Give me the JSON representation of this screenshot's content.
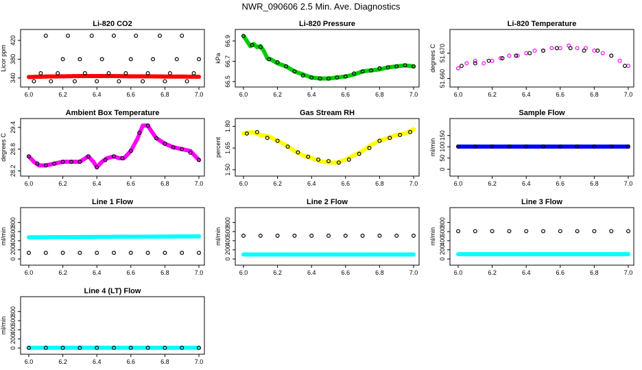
{
  "figure_title": "NWR_090606  2.5 Min. Ave. Diagnostics",
  "chart_data": [
    {
      "id": "co2",
      "type": "scatter",
      "title": "Li-820 CO2",
      "ylabel": "Licor ppm",
      "xlim": [
        6.0,
        7.0
      ],
      "ylim": [
        328,
        436
      ],
      "xticks": [
        6.0,
        6.2,
        6.4,
        6.6,
        6.8,
        7.0
      ],
      "xtick_labels": [
        "6.0",
        "6.2",
        "6.4",
        "6.6",
        "6.8",
        "7.0"
      ],
      "yticks": [
        340,
        380,
        420
      ],
      "ytick_labels": [
        "340",
        "380",
        "420"
      ],
      "series": [
        {
          "name": "red",
          "color": "#ff0000",
          "marker": "dot",
          "x": [
            6.0,
            6.1,
            6.2,
            6.3,
            6.4,
            6.5,
            6.6,
            6.7,
            6.8,
            6.9,
            7.0
          ],
          "y": [
            342,
            343,
            343.5,
            344,
            344,
            344,
            343.5,
            343.5,
            343,
            343,
            342.5
          ]
        },
        {
          "name": "black",
          "color": "#000000",
          "marker": "circle",
          "x": [
            6.03,
            6.07,
            6.1,
            6.13,
            6.17,
            6.2,
            6.23,
            6.27,
            6.3,
            6.33,
            6.37,
            6.4,
            6.43,
            6.47,
            6.5,
            6.53,
            6.57,
            6.6,
            6.63,
            6.67,
            6.7,
            6.73,
            6.77,
            6.8,
            6.83,
            6.87,
            6.9,
            6.93,
            6.97,
            7.0
          ],
          "y": [
            333,
            350,
            430,
            333,
            350,
            380,
            430,
            333,
            380,
            350,
            430,
            333,
            380,
            350,
            430,
            333,
            350,
            380,
            430,
            333,
            350,
            380,
            430,
            333,
            350,
            380,
            430,
            333,
            350,
            380
          ]
        }
      ]
    },
    {
      "id": "pressure",
      "type": "scatter",
      "title": "Li-820 Pressure",
      "ylabel": "kPa",
      "xlim": [
        6.0,
        7.0
      ],
      "ylim": [
        66.48,
        66.98
      ],
      "xticks": [
        6.0,
        6.2,
        6.4,
        6.6,
        6.8,
        7.0
      ],
      "xtick_labels": [
        "6.0",
        "6.2",
        "6.4",
        "6.6",
        "6.8",
        "7.0"
      ],
      "yticks": [
        66.5,
        66.7,
        66.9
      ],
      "ytick_labels": [
        "66.5",
        "66.7",
        "66.9"
      ],
      "series": [
        {
          "name": "green",
          "color": "#00cc00",
          "marker": "dot",
          "x": [
            6.0,
            6.02,
            6.04,
            6.06,
            6.08,
            6.1,
            6.12,
            6.14,
            6.16,
            6.2,
            6.25,
            6.3,
            6.35,
            6.4,
            6.45,
            6.5,
            6.55,
            6.6,
            6.65,
            6.7,
            6.75,
            6.8,
            6.85,
            6.9,
            6.95,
            7.0
          ],
          "y": [
            66.95,
            66.9,
            66.85,
            66.87,
            66.84,
            66.85,
            66.8,
            66.73,
            66.72,
            66.68,
            66.65,
            66.6,
            66.57,
            66.54,
            66.53,
            66.53,
            66.54,
            66.55,
            66.57,
            66.6,
            66.61,
            66.62,
            66.64,
            66.65,
            66.66,
            66.65
          ]
        },
        {
          "name": "black",
          "color": "#000000",
          "marker": "circle",
          "x": [
            6.0,
            6.05,
            6.1,
            6.15,
            6.2,
            6.25,
            6.3,
            6.35,
            6.4,
            6.45,
            6.5,
            6.55,
            6.6,
            6.65,
            6.7,
            6.75,
            6.8,
            6.85,
            6.9,
            6.95,
            7.0
          ],
          "y": [
            66.95,
            66.86,
            66.84,
            66.72,
            66.69,
            66.65,
            66.6,
            66.56,
            66.54,
            66.53,
            66.53,
            66.54,
            66.55,
            66.58,
            66.6,
            66.61,
            66.63,
            66.64,
            66.65,
            66.66,
            66.65
          ]
        }
      ]
    },
    {
      "id": "licor_temp",
      "type": "scatter",
      "title": "Li-820 Temperature",
      "ylabel": "degrees C",
      "xlim": [
        6.0,
        7.0
      ],
      "ylim": [
        51.658,
        51.678
      ],
      "xticks": [
        6.0,
        6.2,
        6.4,
        6.6,
        6.8,
        7.0
      ],
      "xtick_labels": [
        "6.0",
        "6.2",
        "6.4",
        "6.6",
        "6.8",
        "7.0"
      ],
      "yticks": [
        51.66,
        51.67
      ],
      "ytick_labels": [
        "51.660",
        "51.670"
      ],
      "series": [
        {
          "name": "magenta",
          "color": "#ff00ff",
          "marker": "circle",
          "x": [
            6.0,
            6.05,
            6.1,
            6.15,
            6.2,
            6.25,
            6.3,
            6.35,
            6.4,
            6.45,
            6.5,
            6.55,
            6.6,
            6.65,
            6.7,
            6.75,
            6.8,
            6.85,
            6.9,
            6.95,
            7.0
          ],
          "y": [
            51.664,
            51.666,
            51.667,
            51.666,
            51.667,
            51.668,
            51.669,
            51.669,
            51.67,
            51.671,
            51.671,
            51.672,
            51.672,
            51.673,
            51.672,
            51.672,
            51.671,
            51.67,
            51.669,
            51.667,
            51.665
          ]
        },
        {
          "name": "black",
          "color": "#000000",
          "marker": "circle",
          "x": [
            6.02,
            6.1,
            6.18,
            6.26,
            6.34,
            6.42,
            6.5,
            6.58,
            6.66,
            6.74,
            6.82,
            6.9,
            6.98
          ],
          "y": [
            51.665,
            51.666,
            51.667,
            51.668,
            51.669,
            51.67,
            51.671,
            51.672,
            51.672,
            51.671,
            51.671,
            51.669,
            51.665
          ]
        }
      ]
    },
    {
      "id": "box_temp",
      "type": "scatter",
      "title": "Ambient Box Temperature",
      "ylabel": "degrees C",
      "xlim": [
        6.0,
        7.0
      ],
      "ylim": [
        28.15,
        29.55
      ],
      "xticks": [
        6.0,
        6.2,
        6.4,
        6.6,
        6.8,
        7.0
      ],
      "xtick_labels": [
        "6.0",
        "6.2",
        "6.4",
        "6.6",
        "6.8",
        "7.0"
      ],
      "yticks": [
        28.2,
        28.8,
        29.4
      ],
      "ytick_labels": [
        "28.2",
        "28.8",
        "29.4"
      ],
      "series": [
        {
          "name": "magenta",
          "color": "#ff00ff",
          "marker": "dot",
          "x": [
            6.0,
            6.03,
            6.06,
            6.1,
            6.15,
            6.2,
            6.25,
            6.3,
            6.35,
            6.38,
            6.4,
            6.43,
            6.46,
            6.5,
            6.53,
            6.56,
            6.6,
            6.64,
            6.67,
            6.7,
            6.72,
            6.75,
            6.8,
            6.85,
            6.9,
            6.95,
            7.0
          ],
          "y": [
            28.6,
            28.45,
            28.35,
            28.35,
            28.4,
            28.45,
            28.45,
            28.45,
            28.6,
            28.45,
            28.3,
            28.45,
            28.55,
            28.6,
            28.55,
            28.55,
            28.75,
            29.1,
            29.45,
            29.45,
            29.3,
            29.1,
            28.95,
            28.85,
            28.8,
            28.75,
            28.5
          ]
        },
        {
          "name": "black",
          "color": "#000000",
          "marker": "circle",
          "x": [
            6.0,
            6.05,
            6.1,
            6.15,
            6.2,
            6.25,
            6.3,
            6.35,
            6.4,
            6.45,
            6.5,
            6.55,
            6.6,
            6.65,
            6.7,
            6.75,
            6.8,
            6.85,
            6.9,
            6.95,
            7.0
          ],
          "y": [
            28.6,
            28.4,
            28.35,
            28.4,
            28.45,
            28.45,
            28.45,
            28.6,
            28.3,
            28.5,
            28.6,
            28.55,
            28.75,
            29.25,
            29.45,
            29.1,
            28.95,
            28.85,
            28.8,
            28.7,
            28.5
          ]
        }
      ]
    },
    {
      "id": "rh",
      "type": "scatter",
      "title": "Gas Stream RH",
      "ylabel": "percent",
      "xlim": [
        6.0,
        7.0
      ],
      "ylim": [
        1.48,
        1.83
      ],
      "xticks": [
        6.0,
        6.2,
        6.4,
        6.6,
        6.8,
        7.0
      ],
      "xtick_labels": [
        "6.0",
        "6.2",
        "6.4",
        "6.6",
        "6.8",
        "7.0"
      ],
      "yticks": [
        1.5,
        1.65,
        1.8
      ],
      "ytick_labels": [
        "1.50",
        "1.65",
        "1.80"
      ],
      "series": [
        {
          "name": "yellow",
          "color": "#ffff00",
          "marker": "dot",
          "x": [
            6.0,
            6.05,
            6.1,
            6.15,
            6.2,
            6.25,
            6.3,
            6.35,
            6.4,
            6.45,
            6.5,
            6.55,
            6.6,
            6.65,
            6.7,
            6.75,
            6.8,
            6.85,
            6.9,
            6.95,
            7.0
          ],
          "y": [
            1.75,
            1.76,
            1.74,
            1.73,
            1.7,
            1.67,
            1.63,
            1.6,
            1.58,
            1.56,
            1.55,
            1.55,
            1.57,
            1.6,
            1.63,
            1.67,
            1.7,
            1.72,
            1.74,
            1.75,
            1.78
          ]
        },
        {
          "name": "black",
          "color": "#000000",
          "marker": "circle",
          "x": [
            6.02,
            6.08,
            6.14,
            6.2,
            6.26,
            6.32,
            6.38,
            6.44,
            6.5,
            6.56,
            6.62,
            6.68,
            6.74,
            6.8,
            6.86,
            6.92,
            6.98
          ],
          "y": [
            1.75,
            1.76,
            1.72,
            1.7,
            1.66,
            1.62,
            1.59,
            1.57,
            1.56,
            1.55,
            1.57,
            1.61,
            1.65,
            1.7,
            1.72,
            1.74,
            1.76
          ]
        }
      ]
    },
    {
      "id": "sample_flow",
      "type": "scatter",
      "title": "Sample Flow",
      "ylabel": "ml/min",
      "xlim": [
        6.0,
        7.0
      ],
      "ylim": [
        -15,
        210
      ],
      "xticks": [
        6.0,
        6.2,
        6.4,
        6.6,
        6.8,
        7.0
      ],
      "xtick_labels": [
        "6.0",
        "6.2",
        "6.4",
        "6.6",
        "6.8",
        "7.0"
      ],
      "yticks": [
        0,
        50,
        100,
        150
      ],
      "ytick_labels": [
        "0",
        "50",
        "100",
        "150"
      ],
      "series": [
        {
          "name": "blue",
          "color": "#0000ff",
          "marker": "dot",
          "x": [
            6.0,
            7.0
          ],
          "y": [
            101,
            101
          ]
        },
        {
          "name": "black",
          "color": "#000000",
          "marker": "circle",
          "x": [
            6.0,
            6.1,
            6.2,
            6.3,
            6.4,
            6.5,
            6.6,
            6.7,
            6.8,
            6.9,
            7.0
          ],
          "y": [
            101,
            101,
            101,
            101,
            101,
            101,
            101,
            101,
            101,
            101,
            101
          ]
        }
      ]
    },
    {
      "id": "line1",
      "type": "scatter",
      "title": "Line 1 Flow",
      "ylabel": "ml/min",
      "xlim": [
        6.0,
        7.0
      ],
      "ylim": [
        -60,
        1050
      ],
      "xticks": [
        6.0,
        6.2,
        6.4,
        6.6,
        6.8,
        7.0
      ],
      "xtick_labels": [
        "6.0",
        "6.2",
        "6.4",
        "6.6",
        "6.8",
        "7.0"
      ],
      "yticks": [
        0,
        200,
        400,
        600,
        800
      ],
      "ytick_labels": [
        "0",
        "200",
        "400",
        "600",
        "800"
      ],
      "series": [
        {
          "name": "cyan",
          "color": "#00ffff",
          "marker": "dot",
          "x": [
            6.0,
            7.0
          ],
          "y": [
            475,
            495
          ]
        },
        {
          "name": "black",
          "color": "#000000",
          "marker": "circle",
          "x": [
            6.0,
            6.1,
            6.2,
            6.3,
            6.4,
            6.5,
            6.6,
            6.7,
            6.8,
            6.9,
            7.0
          ],
          "y": [
            135,
            135,
            135,
            135,
            135,
            135,
            135,
            135,
            135,
            135,
            135
          ]
        }
      ]
    },
    {
      "id": "line2",
      "type": "scatter",
      "title": "Line 2 Flow",
      "ylabel": "ml/min",
      "xlim": [
        6.0,
        7.0
      ],
      "ylim": [
        -60,
        1050
      ],
      "xticks": [
        6.0,
        6.2,
        6.4,
        6.6,
        6.8,
        7.0
      ],
      "xtick_labels": [
        "6.0",
        "6.2",
        "6.4",
        "6.6",
        "6.8",
        "7.0"
      ],
      "yticks": [
        0,
        200,
        400,
        600,
        800
      ],
      "ytick_labels": [
        "0",
        "200",
        "400",
        "600",
        "800"
      ],
      "series": [
        {
          "name": "cyan",
          "color": "#00ffff",
          "marker": "dot",
          "x": [
            6.0,
            7.0
          ],
          "y": [
            100,
            100
          ]
        },
        {
          "name": "black",
          "color": "#000000",
          "marker": "circle",
          "x": [
            6.0,
            6.1,
            6.2,
            6.3,
            6.4,
            6.5,
            6.6,
            6.7,
            6.8,
            6.9,
            7.0
          ],
          "y": [
            510,
            510,
            510,
            510,
            510,
            510,
            510,
            510,
            510,
            510,
            510
          ]
        }
      ]
    },
    {
      "id": "line3",
      "type": "scatter",
      "title": "Line 3 Flow",
      "ylabel": "ml/min",
      "xlim": [
        6.0,
        7.0
      ],
      "ylim": [
        -60,
        1050
      ],
      "xticks": [
        6.0,
        6.2,
        6.4,
        6.6,
        6.8,
        7.0
      ],
      "xtick_labels": [
        "6.0",
        "6.2",
        "6.4",
        "6.6",
        "6.8",
        "7.0"
      ],
      "yticks": [
        0,
        200,
        400,
        600,
        800
      ],
      "ytick_labels": [
        "0",
        "200",
        "400",
        "600",
        "800"
      ],
      "series": [
        {
          "name": "cyan",
          "color": "#00ffff",
          "marker": "dot",
          "x": [
            6.0,
            7.0
          ],
          "y": [
            105,
            105
          ]
        },
        {
          "name": "black",
          "color": "#000000",
          "marker": "circle",
          "x": [
            6.0,
            6.1,
            6.2,
            6.3,
            6.4,
            6.5,
            6.6,
            6.7,
            6.8,
            6.9,
            7.0
          ],
          "y": [
            610,
            610,
            610,
            610,
            610,
            610,
            610,
            610,
            610,
            610,
            610
          ]
        }
      ]
    },
    {
      "id": "line4",
      "type": "scatter",
      "title": "Line 4 (LT) Flow",
      "ylabel": "ml/min",
      "xlim": [
        6.0,
        7.0
      ],
      "ylim": [
        -60,
        1050
      ],
      "xticks": [
        6.0,
        6.2,
        6.4,
        6.6,
        6.8,
        7.0
      ],
      "xtick_labels": [
        "6.0",
        "6.2",
        "6.4",
        "6.6",
        "6.8",
        "7.0"
      ],
      "yticks": [
        0,
        200,
        400,
        600,
        800
      ],
      "ytick_labels": [
        "0",
        "200",
        "400",
        "600",
        "800"
      ],
      "series": [
        {
          "name": "cyan",
          "color": "#00ffff",
          "marker": "dot",
          "x": [
            6.0,
            7.0
          ],
          "y": [
            5,
            5
          ]
        },
        {
          "name": "black",
          "color": "#000000",
          "marker": "circle",
          "x": [
            6.0,
            6.1,
            6.2,
            6.3,
            6.4,
            6.5,
            6.6,
            6.7,
            6.8,
            6.9,
            7.0
          ],
          "y": [
            5,
            5,
            5,
            5,
            5,
            5,
            5,
            5,
            5,
            5,
            5
          ]
        }
      ]
    }
  ]
}
